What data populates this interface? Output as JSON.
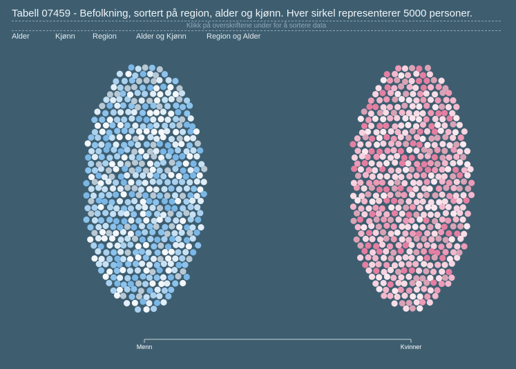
{
  "header": {
    "title": "Tabell 07459 - Befolkning, sortert på region, alder og kjønn. Hver sirkel representerer 5000 personer.",
    "subtitle": "Klikk på overskriftene under for å sortere data"
  },
  "sort_options": [
    "Alder",
    "Kjønn",
    "Region",
    "Alder og Kjønn",
    "Region og Alder"
  ],
  "colors": {
    "background": "#3e5e70",
    "men_palette": [
      "#a9d1ef",
      "#8cc2eb",
      "#c6e0f4",
      "#e1eef8",
      "#f3f7fa",
      "#7bb7e6",
      "#b8c8d4"
    ],
    "women_palette": [
      "#f2b8cc",
      "#ec9ab6",
      "#f7d3df",
      "#fbe8ee",
      "#e57fa2",
      "#d9a3b6",
      "#f9dde6"
    ]
  },
  "chart_data": {
    "type": "scatter",
    "encoding": "beeswarm; each circle = 5000 persons",
    "axis": {
      "categories": [
        "Menn",
        "Kvinner"
      ]
    },
    "series": [
      {
        "name": "Menn",
        "circles": 522
      },
      {
        "name": "Kvinner",
        "circles": 518
      }
    ]
  }
}
